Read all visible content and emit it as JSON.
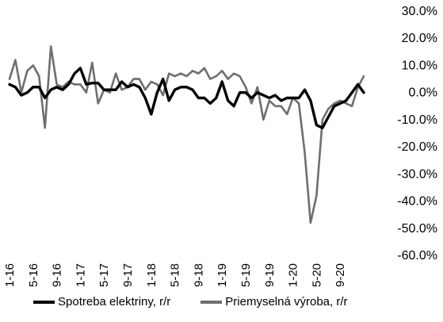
{
  "chart_data": {
    "type": "line",
    "title": "",
    "xlabel": "",
    "ylabel": "",
    "ylim": [
      -0.6,
      0.3
    ],
    "y_ticks": [
      "30.0%",
      "20.0%",
      "10.0%",
      "0.0%",
      "-10.0%",
      "-20.0%",
      "-30.0%",
      "-40.0%",
      "-50.0%",
      "-60.0%"
    ],
    "x_tick_labels": [
      "1-16",
      "5-16",
      "9-16",
      "1-17",
      "5-17",
      "9-17",
      "1-18",
      "5-18",
      "9-18",
      "1-19",
      "5-19",
      "9-19",
      "1-20",
      "5-20",
      "9-20"
    ],
    "x": [
      "1-16",
      "2-16",
      "3-16",
      "4-16",
      "5-16",
      "6-16",
      "7-16",
      "8-16",
      "9-16",
      "10-16",
      "11-16",
      "12-16",
      "1-17",
      "2-17",
      "3-17",
      "4-17",
      "5-17",
      "6-17",
      "7-17",
      "8-17",
      "9-17",
      "10-17",
      "11-17",
      "12-17",
      "1-18",
      "2-18",
      "3-18",
      "4-18",
      "5-18",
      "6-18",
      "7-18",
      "8-18",
      "9-18",
      "10-18",
      "11-18",
      "12-18",
      "1-19",
      "2-19",
      "3-19",
      "4-19",
      "5-19",
      "6-19",
      "7-19",
      "8-19",
      "9-19",
      "10-19",
      "11-19",
      "12-19",
      "1-20",
      "2-20",
      "3-20",
      "4-20",
      "5-20",
      "6-20",
      "7-20",
      "8-20",
      "9-20",
      "10-20",
      "11-20",
      "12-20",
      "1-21"
    ],
    "series": [
      {
        "name": "Spotreba elektriny, r/r",
        "color": "#000000",
        "values": [
          0.03,
          0.02,
          -0.01,
          0.0,
          0.02,
          0.02,
          -0.02,
          0.01,
          0.02,
          0.01,
          0.03,
          0.07,
          0.09,
          0.03,
          0.035,
          0.035,
          0.01,
          0.01,
          0.01,
          0.04,
          0.02,
          0.03,
          0.02,
          -0.02,
          -0.08,
          0.0,
          0.05,
          -0.03,
          0.01,
          0.02,
          0.02,
          0.01,
          -0.02,
          -0.02,
          -0.04,
          -0.02,
          0.04,
          -0.03,
          -0.05,
          0.0,
          0.0,
          -0.02,
          0.0,
          -0.01,
          -0.02,
          -0.01,
          -0.03,
          -0.02,
          -0.02,
          -0.02,
          0.01,
          -0.03,
          -0.12,
          -0.13,
          -0.09,
          -0.05,
          -0.04,
          -0.03,
          0.0,
          0.03,
          0.0
        ]
      },
      {
        "name": "Priemyselná výroba, r/r",
        "color": "#6d6e71",
        "values": [
          0.05,
          0.12,
          0.0,
          0.08,
          0.1,
          0.06,
          -0.13,
          0.17,
          0.03,
          0.02,
          0.04,
          0.03,
          0.03,
          0.0,
          0.11,
          -0.04,
          0.01,
          0.0,
          0.07,
          0.01,
          0.02,
          0.05,
          0.05,
          0.01,
          0.04,
          0.03,
          -0.01,
          0.07,
          0.06,
          0.07,
          0.06,
          0.08,
          0.07,
          0.09,
          0.05,
          0.06,
          0.08,
          0.05,
          0.07,
          0.06,
          0.02,
          -0.04,
          0.02,
          -0.1,
          -0.03,
          -0.05,
          -0.05,
          -0.08,
          -0.02,
          -0.04,
          -0.22,
          -0.48,
          -0.38,
          -0.1,
          -0.06,
          -0.04,
          -0.03,
          -0.04,
          -0.05,
          0.02,
          0.06
        ]
      }
    ],
    "grid": false,
    "legend_position": "bottom"
  }
}
